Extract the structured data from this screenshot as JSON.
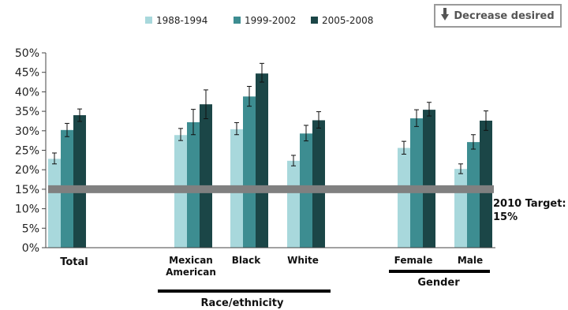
{
  "note": {
    "label": "Decrease desired",
    "icon": "down-arrow-icon"
  },
  "target": {
    "label_line1": "2010 Target:",
    "label_line2": "15%",
    "value": 15,
    "color": "#808080"
  },
  "groups": [
    {
      "label": "Race/ethnicity",
      "members": [
        "Mexican American",
        "Black",
        "White"
      ]
    },
    {
      "label": "Gender",
      "members": [
        "Female",
        "Male"
      ]
    }
  ],
  "chart_data": {
    "type": "bar",
    "categories": [
      "Total",
      "Mexican American",
      "Black",
      "White",
      "Female",
      "Male"
    ],
    "series": [
      {
        "name": "1988-1994",
        "color": "#a8d8dc",
        "values": [
          22.8,
          28.9,
          30.4,
          22.3,
          25.6,
          20.2
        ],
        "err_low": [
          21.5,
          27.5,
          29.0,
          21.0,
          24.0,
          19.0
        ],
        "err_high": [
          24.3,
          30.6,
          32.1,
          23.7,
          27.3,
          21.5
        ]
      },
      {
        "name": "1999-2002",
        "color": "#3d8d91",
        "values": [
          30.2,
          32.2,
          38.8,
          29.3,
          33.2,
          27.1
        ],
        "err_low": [
          28.5,
          29.0,
          36.3,
          27.4,
          31.1,
          25.3
        ],
        "err_high": [
          31.9,
          35.5,
          41.4,
          31.4,
          35.4,
          29.0
        ]
      },
      {
        "name": "2005-2008",
        "color": "#1b4647",
        "values": [
          34.0,
          36.8,
          44.7,
          32.7,
          35.4,
          32.6
        ],
        "err_low": [
          32.4,
          33.1,
          42.5,
          30.7,
          33.8,
          30.1
        ],
        "err_high": [
          35.6,
          40.5,
          47.3,
          34.9,
          37.3,
          35.1
        ]
      }
    ],
    "yticks": [
      "0%",
      "5%",
      "10%",
      "15%",
      "20%",
      "25%",
      "30%",
      "35%",
      "40%",
      "45%",
      "50%"
    ],
    "ylim": [
      0,
      50
    ],
    "legend": "top",
    "grid": false
  }
}
